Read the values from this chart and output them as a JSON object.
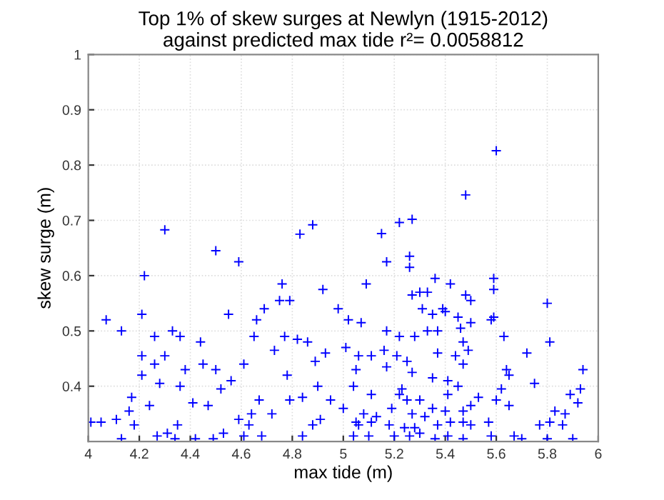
{
  "chart_data": {
    "type": "scatter",
    "title": "Top 1% of skew surges at Newlyn (1915-2012)\nagainst predicted max tide r²= 0.0058812",
    "xlabel": "max tide (m)",
    "ylabel": "skew surge (m)",
    "xlim": [
      4,
      6
    ],
    "ylim": [
      0.3,
      1
    ],
    "xticks": [
      4,
      4.2,
      4.4,
      4.6,
      4.8,
      5,
      5.2,
      5.4,
      5.6,
      5.8,
      6
    ],
    "yticks": [
      0.4,
      0.5,
      0.6,
      0.7,
      0.8,
      0.9,
      1
    ],
    "grid": true,
    "marker": "cross",
    "legend": false,
    "series": [
      {
        "color": "#0000ff",
        "x": [
          4.01,
          4.05,
          4.11,
          4.07,
          4.13,
          4.13,
          4.16,
          4.17,
          4.18,
          4.21,
          4.21,
          4.21,
          4.22,
          4.24,
          4.26,
          4.26,
          4.27,
          4.28,
          4.3,
          4.31,
          4.33,
          4.35,
          4.36,
          4.36,
          4.38,
          4.41,
          4.42,
          4.44,
          4.45,
          4.47,
          4.49,
          4.5,
          4.5,
          4.52,
          4.53,
          4.55,
          4.56,
          4.59,
          4.59,
          4.61,
          4.63,
          4.64,
          4.65,
          4.66,
          4.67,
          4.68,
          4.69,
          4.72,
          4.73,
          4.75,
          4.76,
          4.77,
          4.78,
          4.79,
          4.79,
          4.82,
          4.84,
          4.86,
          4.88,
          4.89,
          4.9,
          4.91,
          4.92,
          4.93,
          4.95,
          4.98,
          5.0,
          5.01,
          5.04,
          5.05,
          4.84,
          4.61,
          4.34,
          4.3,
          4.83,
          4.88,
          5.15,
          5.22,
          5.27,
          5.48,
          5.6,
          5.17,
          5.26,
          5.26,
          5.09,
          5.36,
          5.27,
          5.3,
          5.33,
          5.42,
          5.48,
          5.5,
          5.59,
          5.59,
          5.8,
          5.02,
          5.07,
          5.17,
          5.31,
          5.35,
          5.39,
          5.4,
          5.45,
          5.46,
          5.5,
          5.58,
          5.59,
          5.63,
          5.81,
          5.33,
          5.37,
          5.22,
          5.28,
          5.47,
          5.49,
          5.06,
          5.11,
          5.16,
          5.21,
          5.25,
          5.37,
          5.44,
          5.47,
          5.72,
          5.94,
          5.64,
          5.05,
          5.17,
          5.27,
          5.35,
          5.41,
          5.62,
          5.75,
          5.93,
          5.65,
          5.89,
          5.11,
          5.23,
          5.22,
          5.25,
          5.3,
          5.35,
          5.41,
          5.45,
          5.5,
          5.53,
          5.6,
          5.65,
          5.92,
          5.08,
          5.13,
          5.19,
          5.27,
          5.32,
          5.4,
          5.47,
          5.57,
          5.83,
          5.87,
          5.06,
          5.11,
          5.18,
          5.24,
          5.28,
          5.37,
          5.42,
          5.47,
          5.5,
          5.77,
          5.81,
          5.86,
          5.04,
          5.1,
          5.2,
          5.26,
          5.3,
          5.36,
          5.41,
          5.47,
          5.58,
          5.67,
          5.7,
          5.8,
          5.9
        ],
        "values": [
          0.335,
          0.335,
          0.34,
          0.52,
          0.5,
          0.305,
          0.355,
          0.38,
          0.33,
          0.42,
          0.455,
          0.53,
          0.6,
          0.365,
          0.44,
          0.49,
          0.31,
          0.405,
          0.455,
          0.315,
          0.5,
          0.33,
          0.49,
          0.4,
          0.43,
          0.37,
          0.305,
          0.48,
          0.44,
          0.365,
          0.305,
          0.43,
          0.645,
          0.395,
          0.315,
          0.53,
          0.41,
          0.34,
          0.625,
          0.44,
          0.33,
          0.35,
          0.49,
          0.52,
          0.375,
          0.31,
          0.54,
          0.35,
          0.465,
          0.555,
          0.585,
          0.49,
          0.42,
          0.375,
          0.555,
          0.485,
          0.38,
          0.48,
          0.33,
          0.445,
          0.4,
          0.34,
          0.575,
          0.46,
          0.375,
          0.54,
          0.36,
          0.47,
          0.4,
          0.335,
          0.31,
          0.31,
          0.305,
          0.683,
          0.675,
          0.692,
          0.676,
          0.696,
          0.702,
          0.746,
          0.826,
          0.625,
          0.635,
          0.615,
          0.585,
          0.595,
          0.565,
          0.57,
          0.57,
          0.585,
          0.565,
          0.555,
          0.595,
          0.575,
          0.55,
          0.52,
          0.515,
          0.5,
          0.54,
          0.53,
          0.54,
          0.535,
          0.525,
          0.505,
          0.515,
          0.52,
          0.525,
          0.49,
          0.48,
          0.5,
          0.5,
          0.49,
          0.49,
          0.48,
          0.465,
          0.455,
          0.455,
          0.465,
          0.455,
          0.445,
          0.46,
          0.455,
          0.44,
          0.46,
          0.43,
          0.43,
          0.43,
          0.435,
          0.425,
          0.415,
          0.41,
          0.395,
          0.405,
          0.395,
          0.42,
          0.385,
          0.385,
          0.395,
          0.385,
          0.375,
          0.375,
          0.36,
          0.385,
          0.4,
          0.365,
          0.38,
          0.375,
          0.365,
          0.37,
          0.35,
          0.345,
          0.36,
          0.35,
          0.345,
          0.355,
          0.355,
          0.335,
          0.355,
          0.35,
          0.33,
          0.335,
          0.33,
          0.325,
          0.325,
          0.33,
          0.335,
          0.335,
          0.33,
          0.33,
          0.335,
          0.33,
          0.31,
          0.31,
          0.31,
          0.31,
          0.315,
          0.305,
          0.31,
          0.305,
          0.31,
          0.31,
          0.305,
          0.305,
          0.305
        ]
      }
    ]
  }
}
